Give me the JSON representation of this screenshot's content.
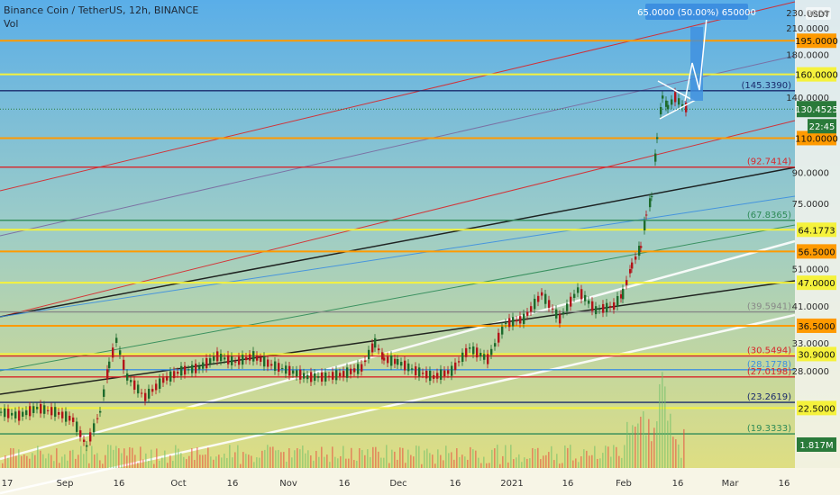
{
  "header": {
    "symbol_line": "Binance Coin / TetherUS, 12h, BINANCE",
    "indicator": "Vol"
  },
  "currency_badge": "USDT",
  "projection_label": "65.0000 (50.00%) 650000",
  "colors": {
    "bg_top": "#5aaee8",
    "bg_mid": "#9cccc8",
    "bg_bottom": "#e6e07a",
    "orange": "#ff9a00",
    "yellow": "#f5f23c",
    "green": "#2e8b57",
    "red": "#d8262a",
    "navy": "#1a2a6c",
    "white": "#ffffff",
    "black": "#111111",
    "blue_ray": "#3d8fe0",
    "price_green": "#2a7a3a",
    "vol_bar": "#e8453c",
    "vol_bar_up": "#6dbf6a"
  },
  "chart_data": {
    "type": "candlestick",
    "title": "Binance Coin / TetherUS, 12h, BINANCE",
    "y_scale": "log",
    "y_range": [
      16.5,
      240
    ],
    "x_tick_labels": [
      "17",
      "Sep",
      "16",
      "Oct",
      "16",
      "Nov",
      "16",
      "Dec",
      "16",
      "2021",
      "16",
      "Feb",
      "16",
      "Mar",
      "16"
    ],
    "y_axis_labels": [
      "230.0000",
      "210.0000",
      "195.0000",
      "180.0000",
      "160.0000",
      "145.3390",
      "140.0000",
      "130.4525",
      "22:45",
      "110.0000",
      "92.7414",
      "90.0000",
      "75.0000",
      "67.8365",
      "64.1773",
      "56.5000",
      "51.0000",
      "47.0000",
      "41.0000",
      "39.5941",
      "36.5000",
      "33.0000",
      "30.5494",
      "30.9000",
      "28.1778",
      "28.0000",
      "27.0198",
      "23.2619",
      "22.5000",
      "19.3333",
      "1.817M"
    ],
    "horizontal_levels": [
      {
        "value": 195.0,
        "label": "195.0000",
        "color": "orange",
        "style": "badge"
      },
      {
        "value": 160.0,
        "label": "160.0000",
        "color": "yellow",
        "style": "badge"
      },
      {
        "value": 145.339,
        "label": "(145.3390)",
        "color": "navy",
        "style": "paren"
      },
      {
        "value": 110.0,
        "label": "110.0000",
        "color": "orange",
        "style": "badge"
      },
      {
        "value": 92.7414,
        "label": "(92.7414)",
        "color": "red",
        "style": "paren"
      },
      {
        "value": 67.8365,
        "label": "(67.8365)",
        "color": "green",
        "style": "paren"
      },
      {
        "value": 64.1773,
        "label": "64.1773",
        "color": "yellow",
        "style": "badge"
      },
      {
        "value": 56.5,
        "label": "56.5000",
        "color": "orange",
        "style": "badge"
      },
      {
        "value": 47.0,
        "label": "47.0000",
        "color": "yellow",
        "style": "badge"
      },
      {
        "value": 39.5941,
        "label": "(39.5941)",
        "color": "gray",
        "style": "paren"
      },
      {
        "value": 36.5,
        "label": "36.5000",
        "color": "orange",
        "style": "badge"
      },
      {
        "value": 30.5494,
        "label": "(30.5494)",
        "color": "red",
        "style": "paren"
      },
      {
        "value": 30.9,
        "label": "30.9000",
        "color": "yellow",
        "style": "badge"
      },
      {
        "value": 28.1778,
        "label": "(28.1778)",
        "color": "blue",
        "style": "paren"
      },
      {
        "value": 27.0198,
        "label": "(27.0198)",
        "color": "red",
        "style": "paren"
      },
      {
        "value": 23.2619,
        "label": "(23.2619)",
        "color": "navy",
        "style": "paren"
      },
      {
        "value": 22.5,
        "label": "22.5000",
        "color": "yellow",
        "style": "badge"
      },
      {
        "value": 19.3333,
        "label": "(19.3333)",
        "color": "green",
        "style": "paren"
      }
    ],
    "current_price": {
      "value": 130.4525,
      "label": "130.4525",
      "countdown": "22:45"
    },
    "volume_last": "1.817M",
    "price_path": [
      [
        0,
        22.0
      ],
      [
        20,
        21.5
      ],
      [
        40,
        22.5
      ],
      [
        60,
        22.0
      ],
      [
        80,
        21.0
      ],
      [
        95,
        18.0
      ],
      [
        110,
        22.0
      ],
      [
        120,
        29.0
      ],
      [
        128,
        33.5
      ],
      [
        140,
        27.0
      ],
      [
        160,
        24.0
      ],
      [
        180,
        26.5
      ],
      [
        200,
        28.0
      ],
      [
        220,
        28.5
      ],
      [
        240,
        30.5
      ],
      [
        260,
        29.5
      ],
      [
        280,
        30.5
      ],
      [
        300,
        29.0
      ],
      [
        320,
        28.0
      ],
      [
        340,
        27.0
      ],
      [
        360,
        27.0
      ],
      [
        380,
        27.5
      ],
      [
        400,
        28.5
      ],
      [
        415,
        33.0
      ],
      [
        425,
        30.0
      ],
      [
        440,
        29.5
      ],
      [
        460,
        28.0
      ],
      [
        480,
        27.0
      ],
      [
        500,
        28.0
      ],
      [
        520,
        32.0
      ],
      [
        540,
        30.0
      ],
      [
        560,
        37.0
      ],
      [
        580,
        38.0
      ],
      [
        600,
        44.0
      ],
      [
        620,
        38.0
      ],
      [
        640,
        45.0
      ],
      [
        660,
        40.0
      ],
      [
        680,
        41.0
      ],
      [
        690,
        44.0
      ],
      [
        700,
        52.0
      ],
      [
        710,
        58.0
      ],
      [
        716,
        70.0
      ],
      [
        722,
        78.0
      ],
      [
        728,
        110.0
      ],
      [
        734,
        140.0
      ],
      [
        740,
        132.0
      ],
      [
        748,
        140.0
      ],
      [
        756,
        133.0
      ],
      [
        764,
        130.45
      ]
    ]
  }
}
